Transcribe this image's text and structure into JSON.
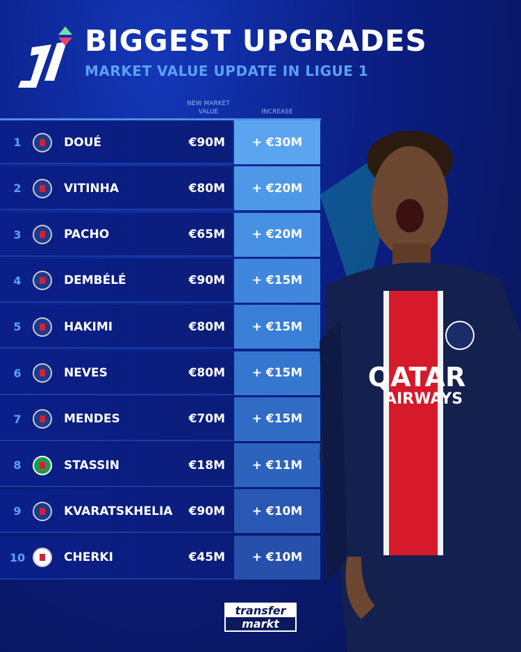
{
  "header": {
    "title": "BIGGEST UPGRADES",
    "subtitle": "MARKET VALUE UPDATE IN LIGUE 1",
    "logo": "Ligue 1 logo"
  },
  "columns": {
    "market_value": "NEW MARKET VALUE",
    "increase": "INCREASE"
  },
  "colors": {
    "increase_top": "#5ba5f0",
    "increase_bottom": "#2a4fb8",
    "rank": "#5aa2f5",
    "subtitle": "#5aa2f5"
  },
  "rows": [
    {
      "rank": "1",
      "club": "PSG",
      "name": "DOUÉ",
      "value": "€90M",
      "increase": "+ €30M"
    },
    {
      "rank": "2",
      "club": "PSG",
      "name": "VITINHA",
      "value": "€80M",
      "increase": "+ €20M"
    },
    {
      "rank": "3",
      "club": "PSG",
      "name": "PACHO",
      "value": "€65M",
      "increase": "+ €20M"
    },
    {
      "rank": "4",
      "club": "PSG",
      "name": "DEMBÉLÉ",
      "value": "€90M",
      "increase": "+ €15M"
    },
    {
      "rank": "5",
      "club": "PSG",
      "name": "HAKIMI",
      "value": "€80M",
      "increase": "+ €15M"
    },
    {
      "rank": "6",
      "club": "PSG",
      "name": "NEVES",
      "value": "€80M",
      "increase": "+ €15M"
    },
    {
      "rank": "7",
      "club": "PSG",
      "name": "MENDES",
      "value": "€70M",
      "increase": "+ €15M"
    },
    {
      "rank": "8",
      "club": "Saint-Étienne",
      "name": "STASSIN",
      "value": "€18M",
      "increase": "+ €11M"
    },
    {
      "rank": "9",
      "club": "PSG",
      "name": "KVARATSKHELIA",
      "value": "€90M",
      "increase": "+ €10M"
    },
    {
      "rank": "10",
      "club": "Lyon",
      "name": "CHERKI",
      "value": "€45M",
      "increase": "+ €10M"
    }
  ],
  "footer": {
    "brand_line1": "transfer",
    "brand_line2": "markt"
  },
  "player_shirt": {
    "sponsor_line1": "QATAR",
    "sponsor_line2": "AIRWAYS"
  }
}
